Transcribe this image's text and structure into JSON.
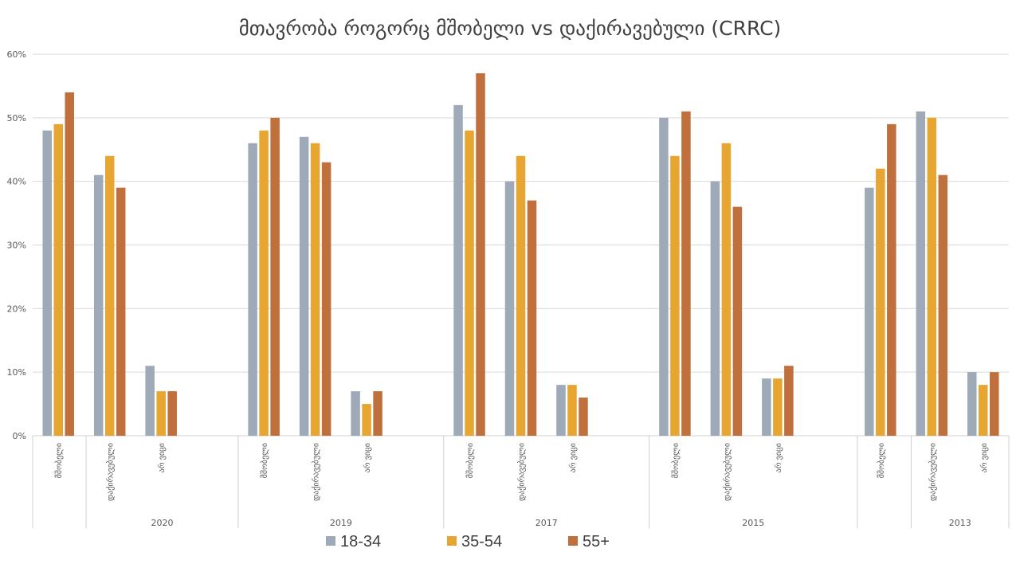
{
  "chart_data": {
    "type": "bar",
    "title": "მთავრობა როგორც მშობელი vs დაქირავებული (CRRC)",
    "y_axis": {
      "min": 0,
      "max": 0.6,
      "ticks": [
        "0%",
        "10%",
        "20%",
        "30%",
        "40%",
        "50%",
        "60%"
      ],
      "grid": true
    },
    "legend": {
      "position": "bottom"
    },
    "series": [
      {
        "name": "18-34",
        "color": "#9eaab7"
      },
      {
        "name": "35-54",
        "color": "#e7a532"
      },
      {
        "name": "55+",
        "color": "#c0703c"
      }
    ],
    "groups": [
      {
        "year": "2020",
        "categories": [
          {
            "label": "მშობელი",
            "values": [
              0.48,
              0.49,
              0.54
            ]
          },
          {
            "label": "დაქირავებული",
            "values": [
              0.41,
              0.44,
              0.39
            ]
          },
          {
            "label": "არ ვიცი",
            "values": [
              0.11,
              0.07,
              0.07
            ]
          }
        ]
      },
      {
        "year": "2019",
        "categories": [
          {
            "label": "მშობელი",
            "values": [
              0.46,
              0.48,
              0.5
            ]
          },
          {
            "label": "დაქირავებული",
            "values": [
              0.47,
              0.46,
              0.43
            ]
          },
          {
            "label": "არ ვიცი",
            "values": [
              0.07,
              0.05,
              0.07
            ]
          }
        ]
      },
      {
        "year": "2017",
        "categories": [
          {
            "label": "მშობელი",
            "values": [
              0.52,
              0.48,
              0.57
            ]
          },
          {
            "label": "დაქირავებული",
            "values": [
              0.4,
              0.44,
              0.37
            ]
          },
          {
            "label": "არ ვიცი",
            "values": [
              0.08,
              0.08,
              0.06
            ]
          }
        ]
      },
      {
        "year": "2015",
        "categories": [
          {
            "label": "მშობელი",
            "values": [
              0.5,
              0.44,
              0.51
            ]
          },
          {
            "label": "დაქირავებული",
            "values": [
              0.4,
              0.46,
              0.36
            ]
          },
          {
            "label": "არ ვიცი",
            "values": [
              0.09,
              0.09,
              0.11
            ]
          }
        ]
      },
      {
        "year": "2013",
        "categories": [
          {
            "label": "მშობელი",
            "values": [
              0.39,
              0.42,
              0.49
            ]
          },
          {
            "label": "დაქირავებული",
            "values": [
              0.51,
              0.5,
              0.41
            ]
          },
          {
            "label": "არ ვიცი",
            "values": [
              0.1,
              0.08,
              0.1
            ]
          }
        ]
      }
    ]
  }
}
